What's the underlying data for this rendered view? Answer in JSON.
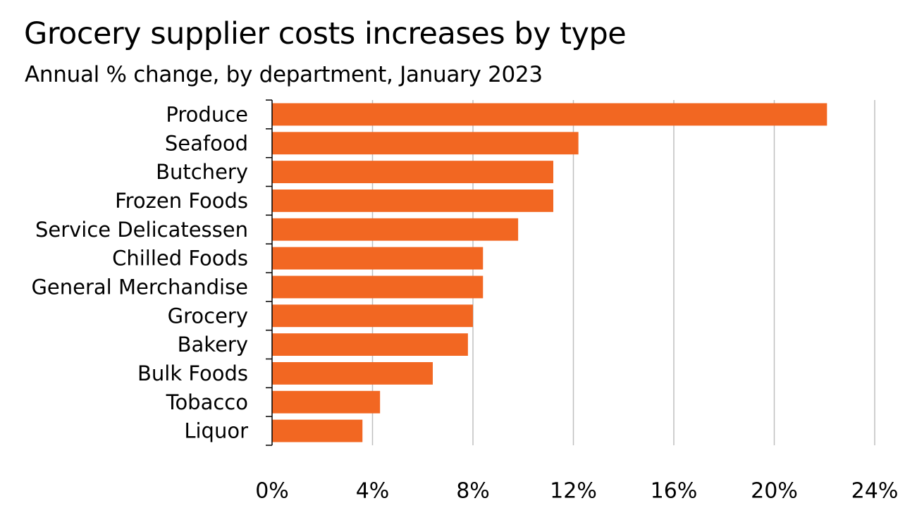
{
  "chart_data": {
    "type": "bar",
    "orientation": "horizontal",
    "title": "Grocery supplier costs  increases by type",
    "subtitle": "Annual % change, by department, January 2023",
    "xlabel": "",
    "ylabel": "",
    "categories": [
      "Produce",
      "Seafood",
      "Butchery",
      "Frozen Foods",
      "Service Delicatessen",
      "Chilled Foods",
      "General Merchandise",
      "Grocery",
      "Bakery",
      "Bulk Foods",
      "Tobacco",
      "Liquor"
    ],
    "values": [
      22.1,
      12.2,
      11.2,
      11.2,
      9.8,
      8.4,
      8.4,
      8.0,
      7.8,
      6.4,
      4.3,
      3.6
    ],
    "xlim": [
      0,
      24
    ],
    "xticks": [
      0,
      4,
      8,
      12,
      16,
      20,
      24
    ],
    "xtick_labels": [
      "0%",
      "4%",
      "8%",
      "12%",
      "16%",
      "20%",
      "24%"
    ],
    "grid": "vertical",
    "legend": "none",
    "bar_color": "#F26722",
    "grid_color": "#BFBFBF",
    "axis_color": "#000000"
  }
}
